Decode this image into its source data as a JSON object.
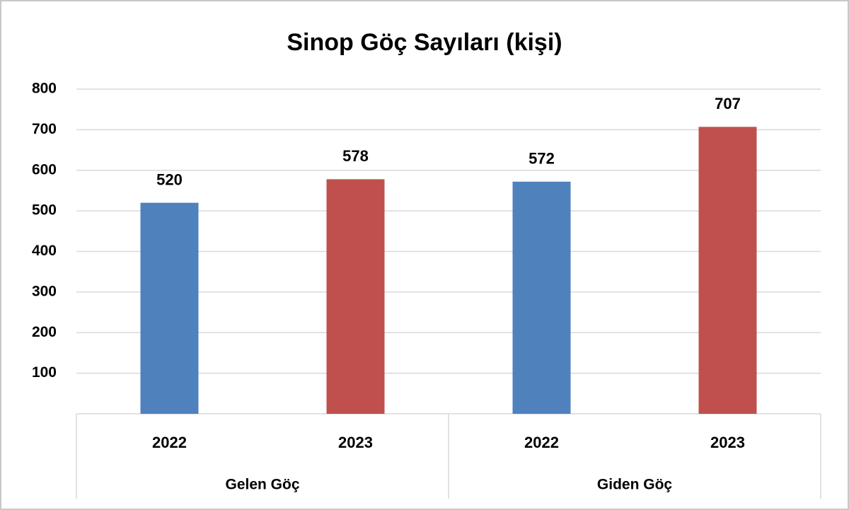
{
  "chart_data": {
    "type": "bar",
    "title": "Sinop Göç Sayıları (kişi)",
    "groups": [
      "Gelen Göç",
      "Giden Göç"
    ],
    "categories": [
      "2022",
      "2023",
      "2022",
      "2023"
    ],
    "values": [
      520,
      578,
      572,
      707
    ],
    "colors": [
      "#4f81bd",
      "#c0504d",
      "#4f81bd",
      "#c0504d"
    ],
    "ylim": [
      0,
      800
    ],
    "yticks": [
      100,
      200,
      300,
      400,
      500,
      600,
      700,
      800
    ],
    "grid": true
  }
}
